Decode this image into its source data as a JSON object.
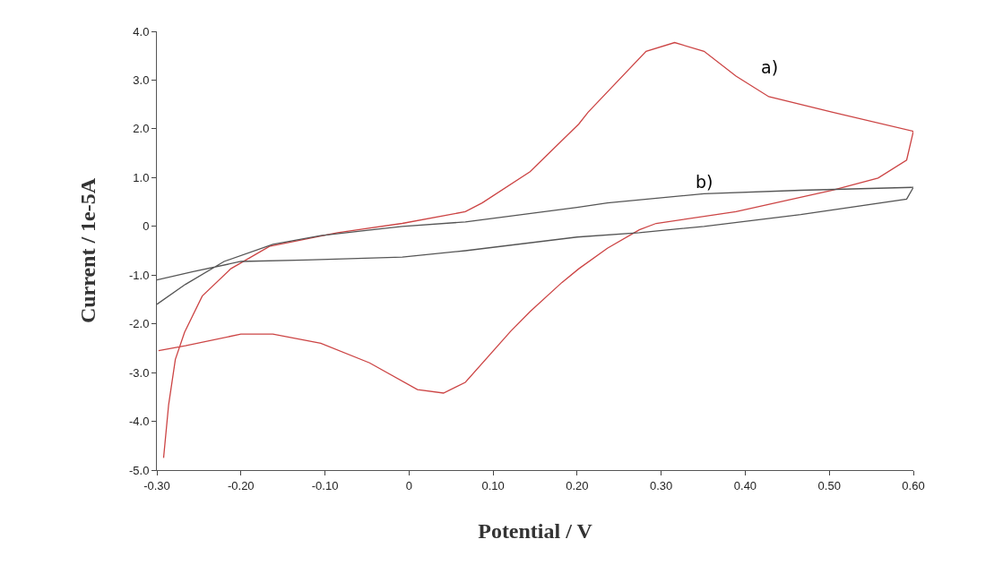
{
  "chart_data": {
    "type": "line",
    "xlabel": "Potential / V",
    "ylabel": "Current / 1e-5A",
    "xlim": [
      -0.3,
      0.6
    ],
    "ylim": [
      -5.0,
      4.0
    ],
    "xticks": [
      {
        "value": -0.3,
        "label": "-0.30"
      },
      {
        "value": -0.2,
        "label": "-0.20"
      },
      {
        "value": -0.1,
        "label": "-0.10"
      },
      {
        "value": 0,
        "label": "0"
      },
      {
        "value": 0.1,
        "label": "0.10"
      },
      {
        "value": 0.2,
        "label": "0.20"
      },
      {
        "value": 0.3,
        "label": "0.30"
      },
      {
        "value": 0.4,
        "label": "0.40"
      },
      {
        "value": 0.5,
        "label": "0.50"
      },
      {
        "value": 0.6,
        "label": "0.60"
      }
    ],
    "yticks": [
      {
        "value": -5,
        "label": "-5.0"
      },
      {
        "value": -4,
        "label": "-4.0"
      },
      {
        "value": -3,
        "label": "-3.0"
      },
      {
        "value": -2,
        "label": "-2.0"
      },
      {
        "value": -1,
        "label": "-1.0"
      },
      {
        "value": 0,
        "label": "0"
      },
      {
        "value": 1,
        "label": "1.0"
      },
      {
        "value": 2,
        "label": "2.0"
      },
      {
        "value": 3,
        "label": "3.0"
      },
      {
        "value": 4,
        "label": "4.0"
      }
    ],
    "marker": "none",
    "line_style": "solid",
    "series": [
      {
        "color": "#cc4444",
        "x": [
          -0.292,
          -0.286,
          -0.278,
          -0.267,
          -0.246,
          -0.212,
          -0.166,
          -0.085,
          -0.008,
          0.067,
          0.087,
          0.144,
          0.202,
          0.213,
          0.282,
          0.316,
          0.351,
          0.389,
          0.428,
          0.504,
          0.6,
          0.592,
          0.558,
          0.504,
          0.389,
          0.294,
          0.274,
          0.236,
          0.202,
          0.182,
          0.144,
          0.121,
          0.067,
          0.041,
          0.01,
          -0.047,
          -0.105,
          -0.162,
          -0.2,
          -0.266,
          -0.298
        ],
        "values": [
          -4.75,
          -3.66,
          -2.73,
          -2.17,
          -1.43,
          -0.87,
          -0.41,
          -0.13,
          0.06,
          0.3,
          0.48,
          1.12,
          2.1,
          2.34,
          3.59,
          3.77,
          3.59,
          3.08,
          2.66,
          2.34,
          1.95,
          1.36,
          0.99,
          0.74,
          0.3,
          0.06,
          -0.07,
          -0.45,
          -0.87,
          -1.15,
          -1.75,
          -2.15,
          -3.2,
          -3.42,
          -3.35,
          -2.8,
          -2.4,
          -2.21,
          -2.21,
          -2.45,
          -2.55
        ]
      },
      {
        "color": "#555555",
        "x": [
          -0.3,
          -0.266,
          -0.22,
          -0.162,
          -0.105,
          -0.008,
          0.067,
          0.2,
          0.236,
          0.351,
          0.466,
          0.6,
          0.592,
          0.466,
          0.351,
          0.274,
          0.2,
          0.067,
          -0.008,
          -0.123,
          -0.2,
          -0.257,
          -0.3
        ],
        "values": [
          -1.6,
          -1.19,
          -0.72,
          -0.37,
          -0.19,
          0.0,
          0.09,
          0.39,
          0.48,
          0.67,
          0.74,
          0.8,
          0.56,
          0.24,
          0.0,
          -0.13,
          -0.22,
          -0.5,
          -0.63,
          -0.69,
          -0.72,
          -0.93,
          -1.1
        ]
      }
    ],
    "annotations": [
      "a)",
      "b)"
    ]
  }
}
